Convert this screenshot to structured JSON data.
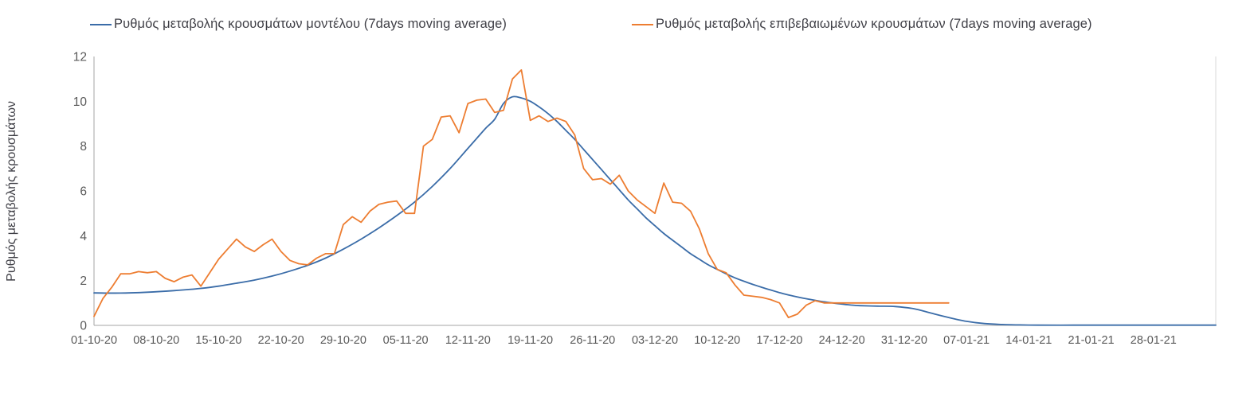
{
  "page": {
    "background": "#ffffff"
  },
  "chart_data": {
    "type": "line",
    "title": "",
    "xlabel": "",
    "ylabel": "Ρυθμός μεταβολής κρουσμάτων",
    "ylim": [
      0,
      12
    ],
    "y_ticks": [
      0,
      2,
      4,
      6,
      8,
      10,
      12
    ],
    "grid": "off",
    "legend_position": "top",
    "axis_color": "#a6a6a6",
    "border_color": "#d9d9d9",
    "text_color": "#595959",
    "x_tick_interval_days": 7,
    "total_days": 126,
    "x_tick_labels": [
      "01-10-20",
      "08-10-20",
      "15-10-20",
      "22-10-20",
      "29-10-20",
      "05-11-20",
      "12-11-20",
      "19-11-20",
      "26-11-20",
      "03-12-20",
      "10-12-20",
      "17-12-20",
      "24-12-20",
      "31-12-20",
      "07-01-21",
      "14-01-21",
      "21-01-21",
      "28-01-21"
    ],
    "series": [
      {
        "name": "Ρυθμός μεταβολής κρουσμάτων μοντέλου (7days moving average)",
        "color": "#3a6ca8",
        "smooth": true,
        "points": [
          [
            0,
            1.45
          ],
          [
            3,
            1.44
          ],
          [
            6,
            1.48
          ],
          [
            9,
            1.55
          ],
          [
            12,
            1.65
          ],
          [
            14,
            1.75
          ],
          [
            16,
            1.88
          ],
          [
            18,
            2.02
          ],
          [
            20,
            2.2
          ],
          [
            22,
            2.42
          ],
          [
            24,
            2.68
          ],
          [
            26,
            3.0
          ],
          [
            28,
            3.4
          ],
          [
            30,
            3.85
          ],
          [
            32,
            4.35
          ],
          [
            34,
            4.9
          ],
          [
            36,
            5.5
          ],
          [
            38,
            6.2
          ],
          [
            40,
            7.0
          ],
          [
            42,
            7.9
          ],
          [
            43,
            8.35
          ],
          [
            44,
            8.8
          ],
          [
            45,
            9.2
          ],
          [
            46,
            9.9
          ],
          [
            47,
            10.2
          ],
          [
            48,
            10.15
          ],
          [
            49,
            10.0
          ],
          [
            50,
            9.75
          ],
          [
            51,
            9.45
          ],
          [
            52,
            9.1
          ],
          [
            53,
            8.7
          ],
          [
            54,
            8.3
          ],
          [
            55,
            7.85
          ],
          [
            56,
            7.4
          ],
          [
            57,
            6.95
          ],
          [
            58,
            6.5
          ],
          [
            59,
            6.05
          ],
          [
            60,
            5.6
          ],
          [
            61,
            5.2
          ],
          [
            62,
            4.8
          ],
          [
            63,
            4.45
          ],
          [
            64,
            4.1
          ],
          [
            65,
            3.8
          ],
          [
            66,
            3.5
          ],
          [
            67,
            3.2
          ],
          [
            68,
            2.95
          ],
          [
            69,
            2.7
          ],
          [
            70,
            2.5
          ],
          [
            71,
            2.3
          ],
          [
            72,
            2.12
          ],
          [
            73,
            1.97
          ],
          [
            74,
            1.83
          ],
          [
            75,
            1.7
          ],
          [
            76,
            1.58
          ],
          [
            77,
            1.46
          ],
          [
            78,
            1.36
          ],
          [
            79,
            1.27
          ],
          [
            80,
            1.19
          ],
          [
            81,
            1.12
          ],
          [
            82,
            1.05
          ],
          [
            83,
            1.0
          ],
          [
            84,
            0.95
          ],
          [
            85,
            0.91
          ],
          [
            86,
            0.88
          ],
          [
            88,
            0.86
          ],
          [
            90,
            0.84
          ],
          [
            92,
            0.75
          ],
          [
            94,
            0.55
          ],
          [
            96,
            0.35
          ],
          [
            98,
            0.18
          ],
          [
            100,
            0.08
          ],
          [
            102,
            0.04
          ],
          [
            104,
            0.02
          ],
          [
            106,
            0.01
          ],
          [
            110,
            0.01
          ],
          [
            114,
            0.01
          ],
          [
            119,
            0.01
          ],
          [
            126,
            0.01
          ]
        ]
      },
      {
        "name": "Ρυθμός μεταβολής επιβεβαιωμένων κρουσμάτων (7days moving average)",
        "color": "#ed7d31",
        "smooth": false,
        "points": [
          [
            0,
            0.4
          ],
          [
            1,
            1.2
          ],
          [
            2,
            1.7
          ],
          [
            3,
            2.3
          ],
          [
            4,
            2.3
          ],
          [
            5,
            2.4
          ],
          [
            6,
            2.35
          ],
          [
            7,
            2.4
          ],
          [
            8,
            2.1
          ],
          [
            9,
            1.95
          ],
          [
            10,
            2.15
          ],
          [
            11,
            2.25
          ],
          [
            12,
            1.75
          ],
          [
            13,
            2.35
          ],
          [
            14,
            2.95
          ],
          [
            15,
            3.4
          ],
          [
            16,
            3.85
          ],
          [
            17,
            3.5
          ],
          [
            18,
            3.3
          ],
          [
            19,
            3.6
          ],
          [
            20,
            3.85
          ],
          [
            21,
            3.3
          ],
          [
            22,
            2.9
          ],
          [
            23,
            2.75
          ],
          [
            24,
            2.7
          ],
          [
            25,
            3.0
          ],
          [
            26,
            3.2
          ],
          [
            27,
            3.2
          ],
          [
            28,
            4.5
          ],
          [
            29,
            4.85
          ],
          [
            30,
            4.6
          ],
          [
            31,
            5.1
          ],
          [
            32,
            5.4
          ],
          [
            33,
            5.5
          ],
          [
            34,
            5.55
          ],
          [
            35,
            5.0
          ],
          [
            36,
            5.0
          ],
          [
            37,
            8.0
          ],
          [
            38,
            8.3
          ],
          [
            39,
            9.3
          ],
          [
            40,
            9.35
          ],
          [
            41,
            8.6
          ],
          [
            42,
            9.9
          ],
          [
            43,
            10.05
          ],
          [
            44,
            10.1
          ],
          [
            45,
            9.5
          ],
          [
            46,
            9.6
          ],
          [
            47,
            11.0
          ],
          [
            48,
            11.4
          ],
          [
            49,
            9.15
          ],
          [
            50,
            9.35
          ],
          [
            51,
            9.1
          ],
          [
            52,
            9.25
          ],
          [
            53,
            9.1
          ],
          [
            54,
            8.5
          ],
          [
            55,
            7.0
          ],
          [
            56,
            6.5
          ],
          [
            57,
            6.55
          ],
          [
            58,
            6.3
          ],
          [
            59,
            6.7
          ],
          [
            60,
            6.0
          ],
          [
            61,
            5.6
          ],
          [
            62,
            5.3
          ],
          [
            63,
            5.0
          ],
          [
            64,
            6.35
          ],
          [
            65,
            5.5
          ],
          [
            66,
            5.45
          ],
          [
            67,
            5.1
          ],
          [
            68,
            4.3
          ],
          [
            69,
            3.2
          ],
          [
            70,
            2.5
          ],
          [
            71,
            2.35
          ],
          [
            72,
            1.8
          ],
          [
            73,
            1.35
          ],
          [
            74,
            1.3
          ],
          [
            75,
            1.25
          ],
          [
            76,
            1.15
          ],
          [
            77,
            1.0
          ],
          [
            78,
            0.35
          ],
          [
            79,
            0.5
          ],
          [
            80,
            0.9
          ],
          [
            81,
            1.1
          ],
          [
            82,
            1.0
          ],
          [
            84,
            1.0
          ],
          [
            88,
            1.0
          ],
          [
            91,
            1.0
          ],
          [
            96,
            1.0
          ]
        ]
      }
    ]
  }
}
